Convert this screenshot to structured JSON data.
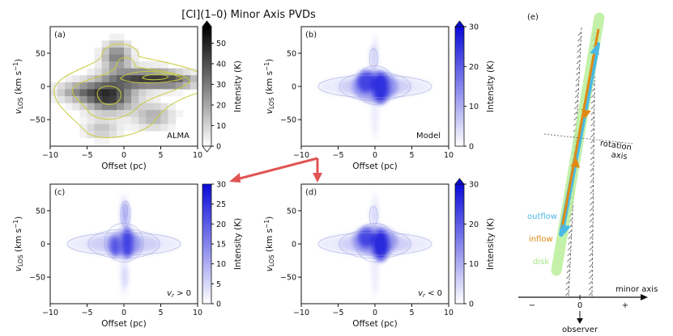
{
  "title": "[CI](1–0) Minor Axis PVDs",
  "chart_data": [
    {
      "type": "heatmap",
      "panel": "(a)",
      "label": "ALMA",
      "xlabel": "Offset (pc)",
      "ylabel": "v_LOS (km s^-1)",
      "xlim": [
        -10,
        10
      ],
      "ylim": [
        -90,
        90
      ],
      "xticks": [
        "−10",
        "−5",
        "0",
        "5",
        "10"
      ],
      "yticks": [
        "−50",
        "0",
        "50"
      ],
      "colorbar": {
        "label": "Intensity (K)",
        "range": [
          0,
          58
        ],
        "ticks": [
          "0",
          "10",
          "20",
          "30",
          "40",
          "50"
        ],
        "extend": "both",
        "colormap": "gray_r"
      },
      "contour_color": "#c8cc3a"
    },
    {
      "type": "heatmap",
      "panel": "(b)",
      "label": "Model",
      "xlabel": "Offset (pc)",
      "ylabel": "v_LOS (km s^-1)",
      "xlim": [
        -10,
        10
      ],
      "ylim": [
        -90,
        90
      ],
      "xticks": [
        "−10",
        "−5",
        "0",
        "5",
        "10"
      ],
      "yticks": [
        "−50",
        "0",
        "50"
      ],
      "colorbar": {
        "label": "Intensity (K)",
        "range": [
          0,
          30
        ],
        "ticks": [
          "0",
          "10",
          "20",
          "30"
        ],
        "extend": "max",
        "colormap": "Blues"
      }
    },
    {
      "type": "heatmap",
      "panel": "(c)",
      "label": "v_r > 0",
      "xlabel": "Offset (pc)",
      "ylabel": "v_LOS (km s^-1)",
      "xlim": [
        -10,
        10
      ],
      "ylim": [
        -90,
        90
      ],
      "xticks": [
        "−10",
        "−5",
        "0",
        "5",
        "10"
      ],
      "yticks": [
        "−50",
        "0",
        "50"
      ],
      "colorbar": {
        "label": "Intensity (K)",
        "range": [
          0,
          30
        ],
        "ticks": [
          "0",
          "5",
          "10",
          "15",
          "20",
          "25",
          "30"
        ],
        "extend": "none",
        "colormap": "Blues"
      }
    },
    {
      "type": "heatmap",
      "panel": "(d)",
      "label": "v_r < 0",
      "xlabel": "Offset (pc)",
      "ylabel": "v_LOS (km s^-1)",
      "xlim": [
        -10,
        10
      ],
      "ylim": [
        -90,
        90
      ],
      "xticks": [
        "−10",
        "−5",
        "0",
        "5",
        "10"
      ],
      "yticks": [
        "−50",
        "0",
        "50"
      ],
      "colorbar": {
        "label": "Intensity (K)",
        "range": [
          0,
          30
        ],
        "ticks": [
          "0",
          "10",
          "20",
          "30"
        ],
        "extend": "max",
        "colormap": "Blues"
      }
    }
  ],
  "schematic": {
    "panel": "(e)",
    "outflow": "outflow",
    "inflow": "inflow",
    "disk": "disk",
    "rotation_axis": "rotation\naxis",
    "minor_axis": "minor axis",
    "minus": "−",
    "zero": "0",
    "plus": "+",
    "observer": "observer",
    "colors": {
      "outflow": "#4ab9e6",
      "inflow": "#e08a12",
      "disk": "#b8ef9a",
      "arrow": "#e05454"
    }
  }
}
